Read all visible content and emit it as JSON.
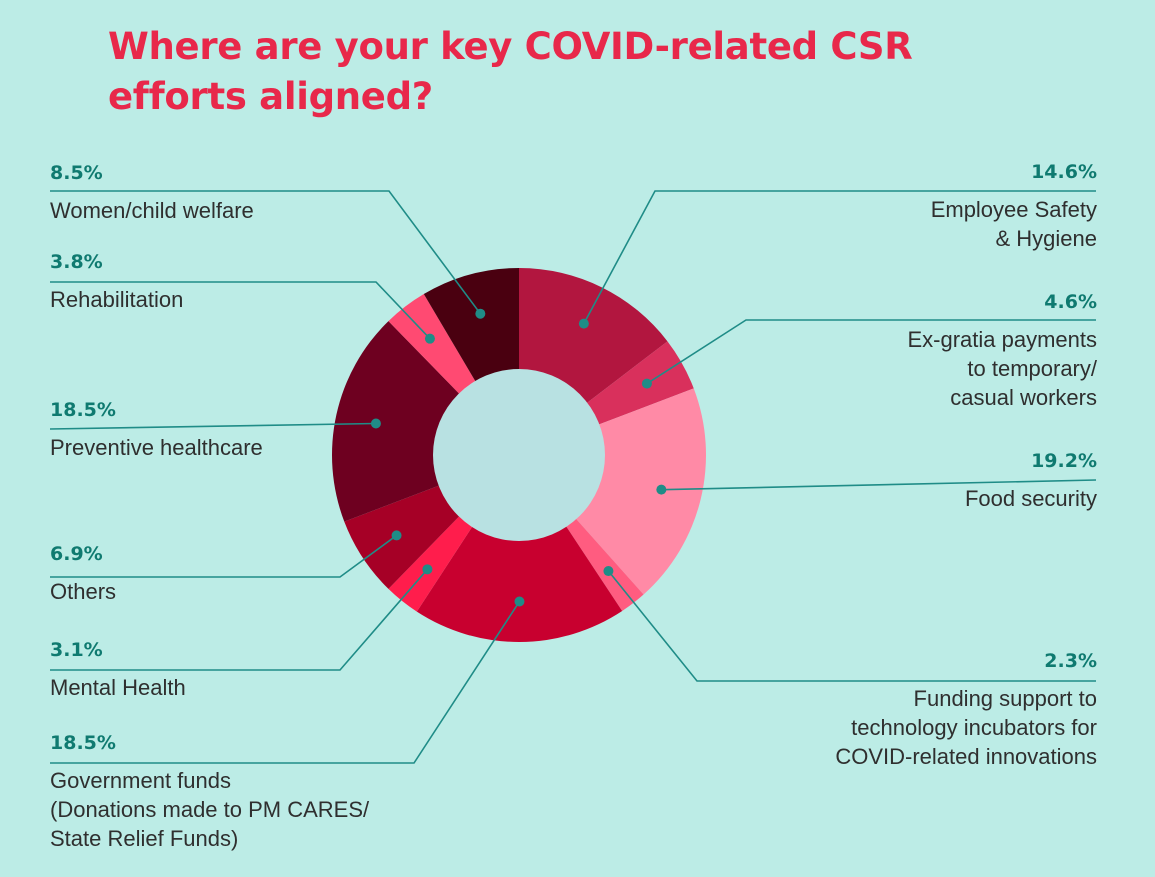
{
  "title": "Where are your key COVID-related CSR efforts aligned?",
  "chart_data": {
    "type": "pie",
    "variant": "donut",
    "slices": [
      {
        "label": "Employee Safety & Hygiene",
        "pct_label": "14.6%",
        "value": 14.6,
        "color": "#b2163f"
      },
      {
        "label": "Ex-gratia payments to temporary/ casual workers",
        "pct_label": "4.6%",
        "value": 4.6,
        "color": "#d9305c"
      },
      {
        "label": "Food security",
        "pct_label": "19.2%",
        "value": 19.2,
        "color": "#ff8aa6"
      },
      {
        "label": "Funding support to technology incubators for COVID-related innovations",
        "pct_label": "2.3%",
        "value": 2.3,
        "color": "#ff5c80"
      },
      {
        "label": "Government funds (Donations made to PM CARES/ State Relief Funds)",
        "pct_label": "18.5%",
        "value": 18.5,
        "color": "#c8002f"
      },
      {
        "label": "Mental Health",
        "pct_label": "3.1%",
        "value": 3.1,
        "color": "#ff1d4c"
      },
      {
        "label": "Others",
        "pct_label": "6.9%",
        "value": 6.9,
        "color": "#a60026"
      },
      {
        "label": "Preventive healthcare",
        "pct_label": "18.5%",
        "value": 18.5,
        "color": "#6e0020"
      },
      {
        "label": "Rehabilitation",
        "pct_label": "3.8%",
        "value": 3.8,
        "color": "#ff4a72"
      },
      {
        "label": "Women/child welfare",
        "pct_label": "8.5%",
        "value": 8.5,
        "color": "#4a0010"
      }
    ],
    "legend": "callouts-around-chart"
  },
  "colors": {
    "background": "#bcece6",
    "title": "#e8284a",
    "percent": "#0f7a70",
    "leader_line": "#1f8c87",
    "donut_hole": "#b8e1e2"
  }
}
